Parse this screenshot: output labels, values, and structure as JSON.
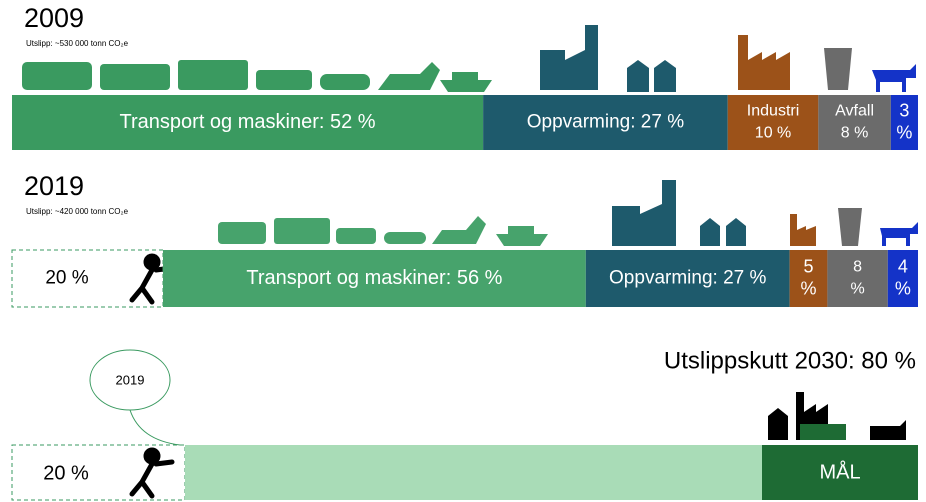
{
  "rows": [
    {
      "year": "2009",
      "note": "Utslipp: ~530 000 tonn CO₂e",
      "segments": [
        {
          "lines": [
            "Transport og maskiner: 52 %"
          ],
          "value": 52,
          "color": "#3a9a60"
        },
        {
          "lines": [
            "Oppvarming: 27 %"
          ],
          "value": 27,
          "color": "#1e5a6c"
        },
        {
          "lines": [
            "Industri",
            "10 %"
          ],
          "value": 10,
          "color": "#9c5219"
        },
        {
          "lines": [
            "Avfall",
            "8 %"
          ],
          "value": 8,
          "color": "#6b6b6b"
        },
        {
          "lines": [
            "3",
            "%"
          ],
          "value": 3,
          "color": "#1433c8"
        }
      ]
    },
    {
      "year": "2019",
      "note": "Utslipp: ~420 000 tonn CO₂e",
      "segments": [
        {
          "lines": [
            "20 %"
          ],
          "value": 20,
          "color": "none"
        },
        {
          "lines": [
            "Transport og maskiner: 56 %"
          ],
          "value": 56,
          "color": "#47a36c"
        },
        {
          "lines": [
            "Oppvarming: 27 %"
          ],
          "value": 27,
          "color": "#1e5a6c"
        },
        {
          "lines": [
            "5",
            "%"
          ],
          "value": 5,
          "color": "#9c5219"
        },
        {
          "lines": [
            "8",
            "%"
          ],
          "value": 8,
          "color": "#6b6b6b"
        },
        {
          "lines": [
            "4",
            "%"
          ],
          "value": 4,
          "color": "#1433c8"
        }
      ]
    }
  ],
  "goal": {
    "title": "Utslippskutt 2030: 80 %",
    "bubble": "2019",
    "remaining": "20 %",
    "target": "MÅL"
  }
}
